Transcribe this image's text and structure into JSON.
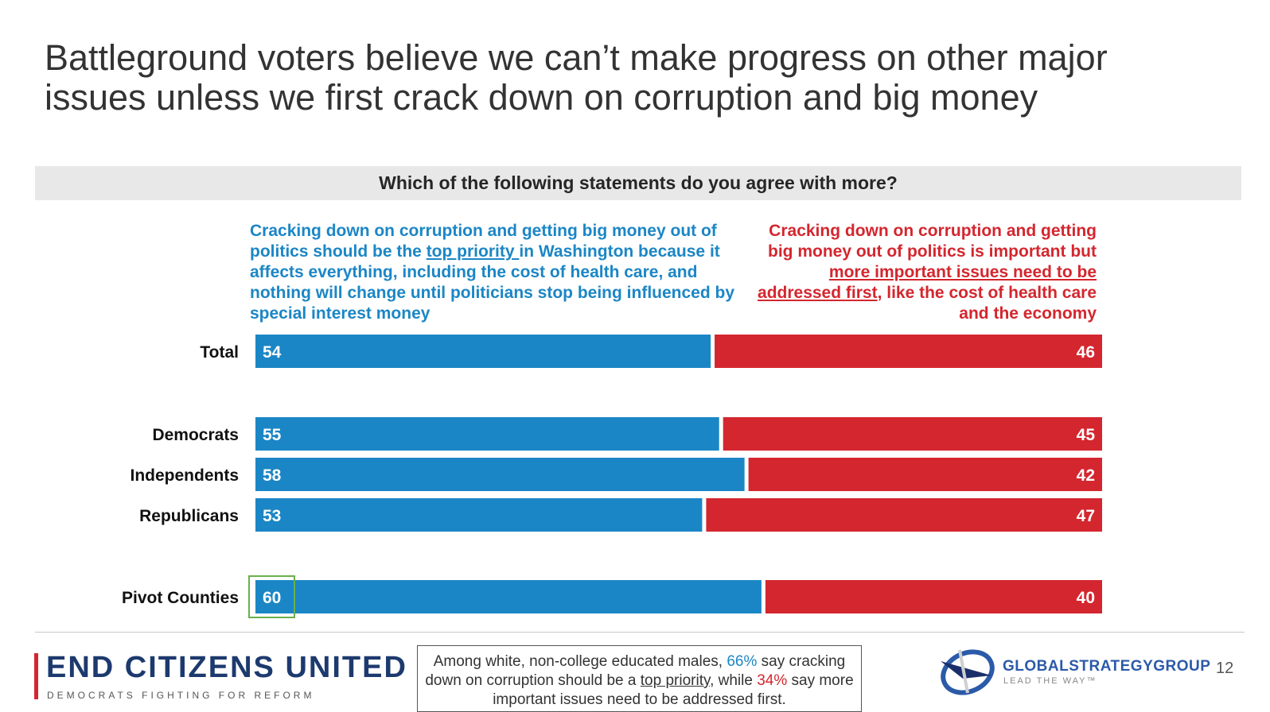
{
  "title_line1": "Battleground voters believe we can’t make progress on other major",
  "title_line2": "issues unless we first crack down on corruption and big money",
  "question": "Which of the following statements do you agree with more?",
  "left_statement": {
    "part1": "Cracking down on corruption and getting big money out of politics should be the ",
    "underline": "top priority ",
    "part2": "in Washington because it affects everything, including the cost of health care, and nothing will change until politicians stop being influenced by special interest money"
  },
  "right_statement": {
    "part1": "Cracking down on corruption and getting big money out of politics is important but ",
    "underline": "more important issues need to be addressed first",
    "part2": ", like the cost of health care and the economy"
  },
  "colors": {
    "blue": "#1b86c5",
    "red": "#d4262e",
    "highlight": "#6ab04c"
  },
  "chart_data": {
    "type": "bar",
    "orientation": "horizontal-stacked-100",
    "categories": [
      "Total",
      "Democrats",
      "Independents",
      "Republicans",
      "Pivot Counties"
    ],
    "series": [
      {
        "name": "Top priority",
        "color": "#1b86c5",
        "values": [
          54,
          55,
          58,
          53,
          60
        ]
      },
      {
        "name": "More important issues first",
        "color": "#d4262e",
        "values": [
          46,
          45,
          42,
          47,
          40
        ]
      }
    ],
    "xlim": [
      0,
      100
    ],
    "highlighted": {
      "category": "Pivot Counties",
      "series": "Top priority"
    }
  },
  "footer": {
    "org_name": "END CITIZENS UNITED",
    "org_tagline": "DEMOCRATS FIGHTING FOR REFORM",
    "callout": {
      "t1": "Among white, non-college educated males, ",
      "pct1": "66%",
      "t2": " say cracking down on corruption should be a ",
      "underline": "top priority",
      "t3": ", while ",
      "pct2": "34%",
      "t4": " say more important issues need to be addressed first."
    },
    "firm_name": "GLOBALSTRATEGYGROUP",
    "firm_tagline": "LEAD THE WAY™",
    "page_number": "12"
  }
}
